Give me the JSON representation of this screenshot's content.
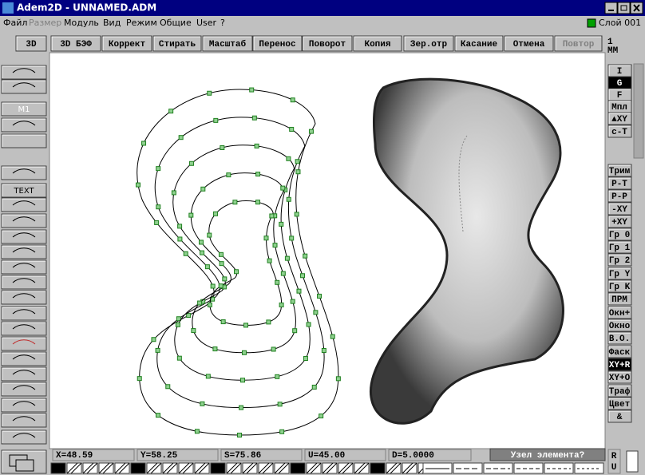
{
  "title_bar": {
    "title": "Adem2D - UNNAMED.ADM"
  },
  "menu": {
    "items": [
      "Файл",
      "Размер",
      "Модуль",
      "Вид",
      "Режим",
      "Общие",
      "User",
      "?"
    ],
    "layer": "Слой 001"
  },
  "toolbar": {
    "buttons": [
      "3D",
      "3D БЭФ",
      "Коррект",
      "Стирать",
      "Масштаб",
      "Перенос",
      "Поворот",
      "Копия",
      "Зер.отр",
      "Касание",
      "Отмена",
      "Повтор"
    ],
    "unit_top": "1",
    "unit_bottom": "ММ"
  },
  "left_panel": {
    "labels": [
      "M1",
      "TEXT"
    ]
  },
  "right_panel": {
    "buttons": [
      "I",
      "G",
      "F",
      "Мпл",
      "▲XY",
      "c-T",
      "Трим",
      "P-T",
      "P-P",
      "-XY",
      "+XY",
      "Гр 0",
      "Гр 1",
      "Гр 2",
      "Гр Y",
      "Гр K",
      "ПРМ",
      "Окн+",
      "Окно",
      "В.О.",
      "Фаск",
      "XY+R",
      "XY+O",
      "Траф",
      "Цвет",
      "&"
    ]
  },
  "status_bar": {
    "fields": [
      "X=48.59",
      "Y=58.25",
      "S=75.86",
      "U=45.00",
      "D=5.0000"
    ],
    "prompt": "Узел элемента?",
    "corner_top": "R",
    "corner_bottom": "U"
  }
}
